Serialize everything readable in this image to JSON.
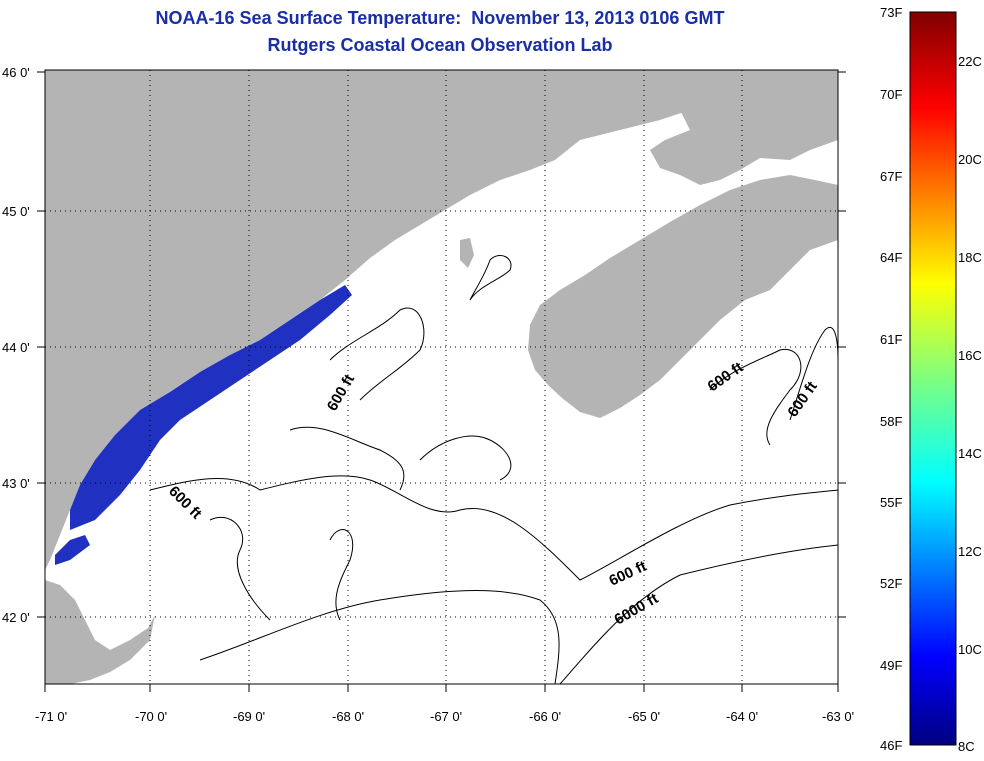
{
  "title": {
    "line1": "NOAA-16 Sea Surface Temperature:  November 13, 2013 0106 GMT",
    "line2": "Rutgers Coastal Ocean Observation Lab"
  },
  "map": {
    "lon_range": [
      -71,
      -63
    ],
    "lat_range": [
      41.5,
      46
    ],
    "x_ticks": [
      "-71 0'",
      "-70 0'",
      "-69 0'",
      "-68 0'",
      "-67 0'",
      "-66 0'",
      "-65 0'",
      "-64 0'",
      "-63 0'"
    ],
    "y_ticks": [
      "46 0'",
      "45 0'",
      "44 0'",
      "43 0'",
      "42 0'"
    ],
    "land_color": "#b4b4b4",
    "water_color": "#ffffff",
    "cold_water_color": "#2030c0",
    "contour_labels": [
      "600 ft",
      "600 ft",
      "600 ft",
      "600 ft",
      "600 ft",
      "6000 ft"
    ]
  },
  "colorbar": {
    "fahrenheit_labels": [
      "73F",
      "70F",
      "67F",
      "64F",
      "61F",
      "58F",
      "55F",
      "52F",
      "49F",
      "46F"
    ],
    "celsius_labels": [
      "22C",
      "20C",
      "18C",
      "16C",
      "14C",
      "12C",
      "10C",
      "8C"
    ],
    "range_f": [
      46,
      73
    ],
    "range_c": [
      8,
      23
    ]
  }
}
